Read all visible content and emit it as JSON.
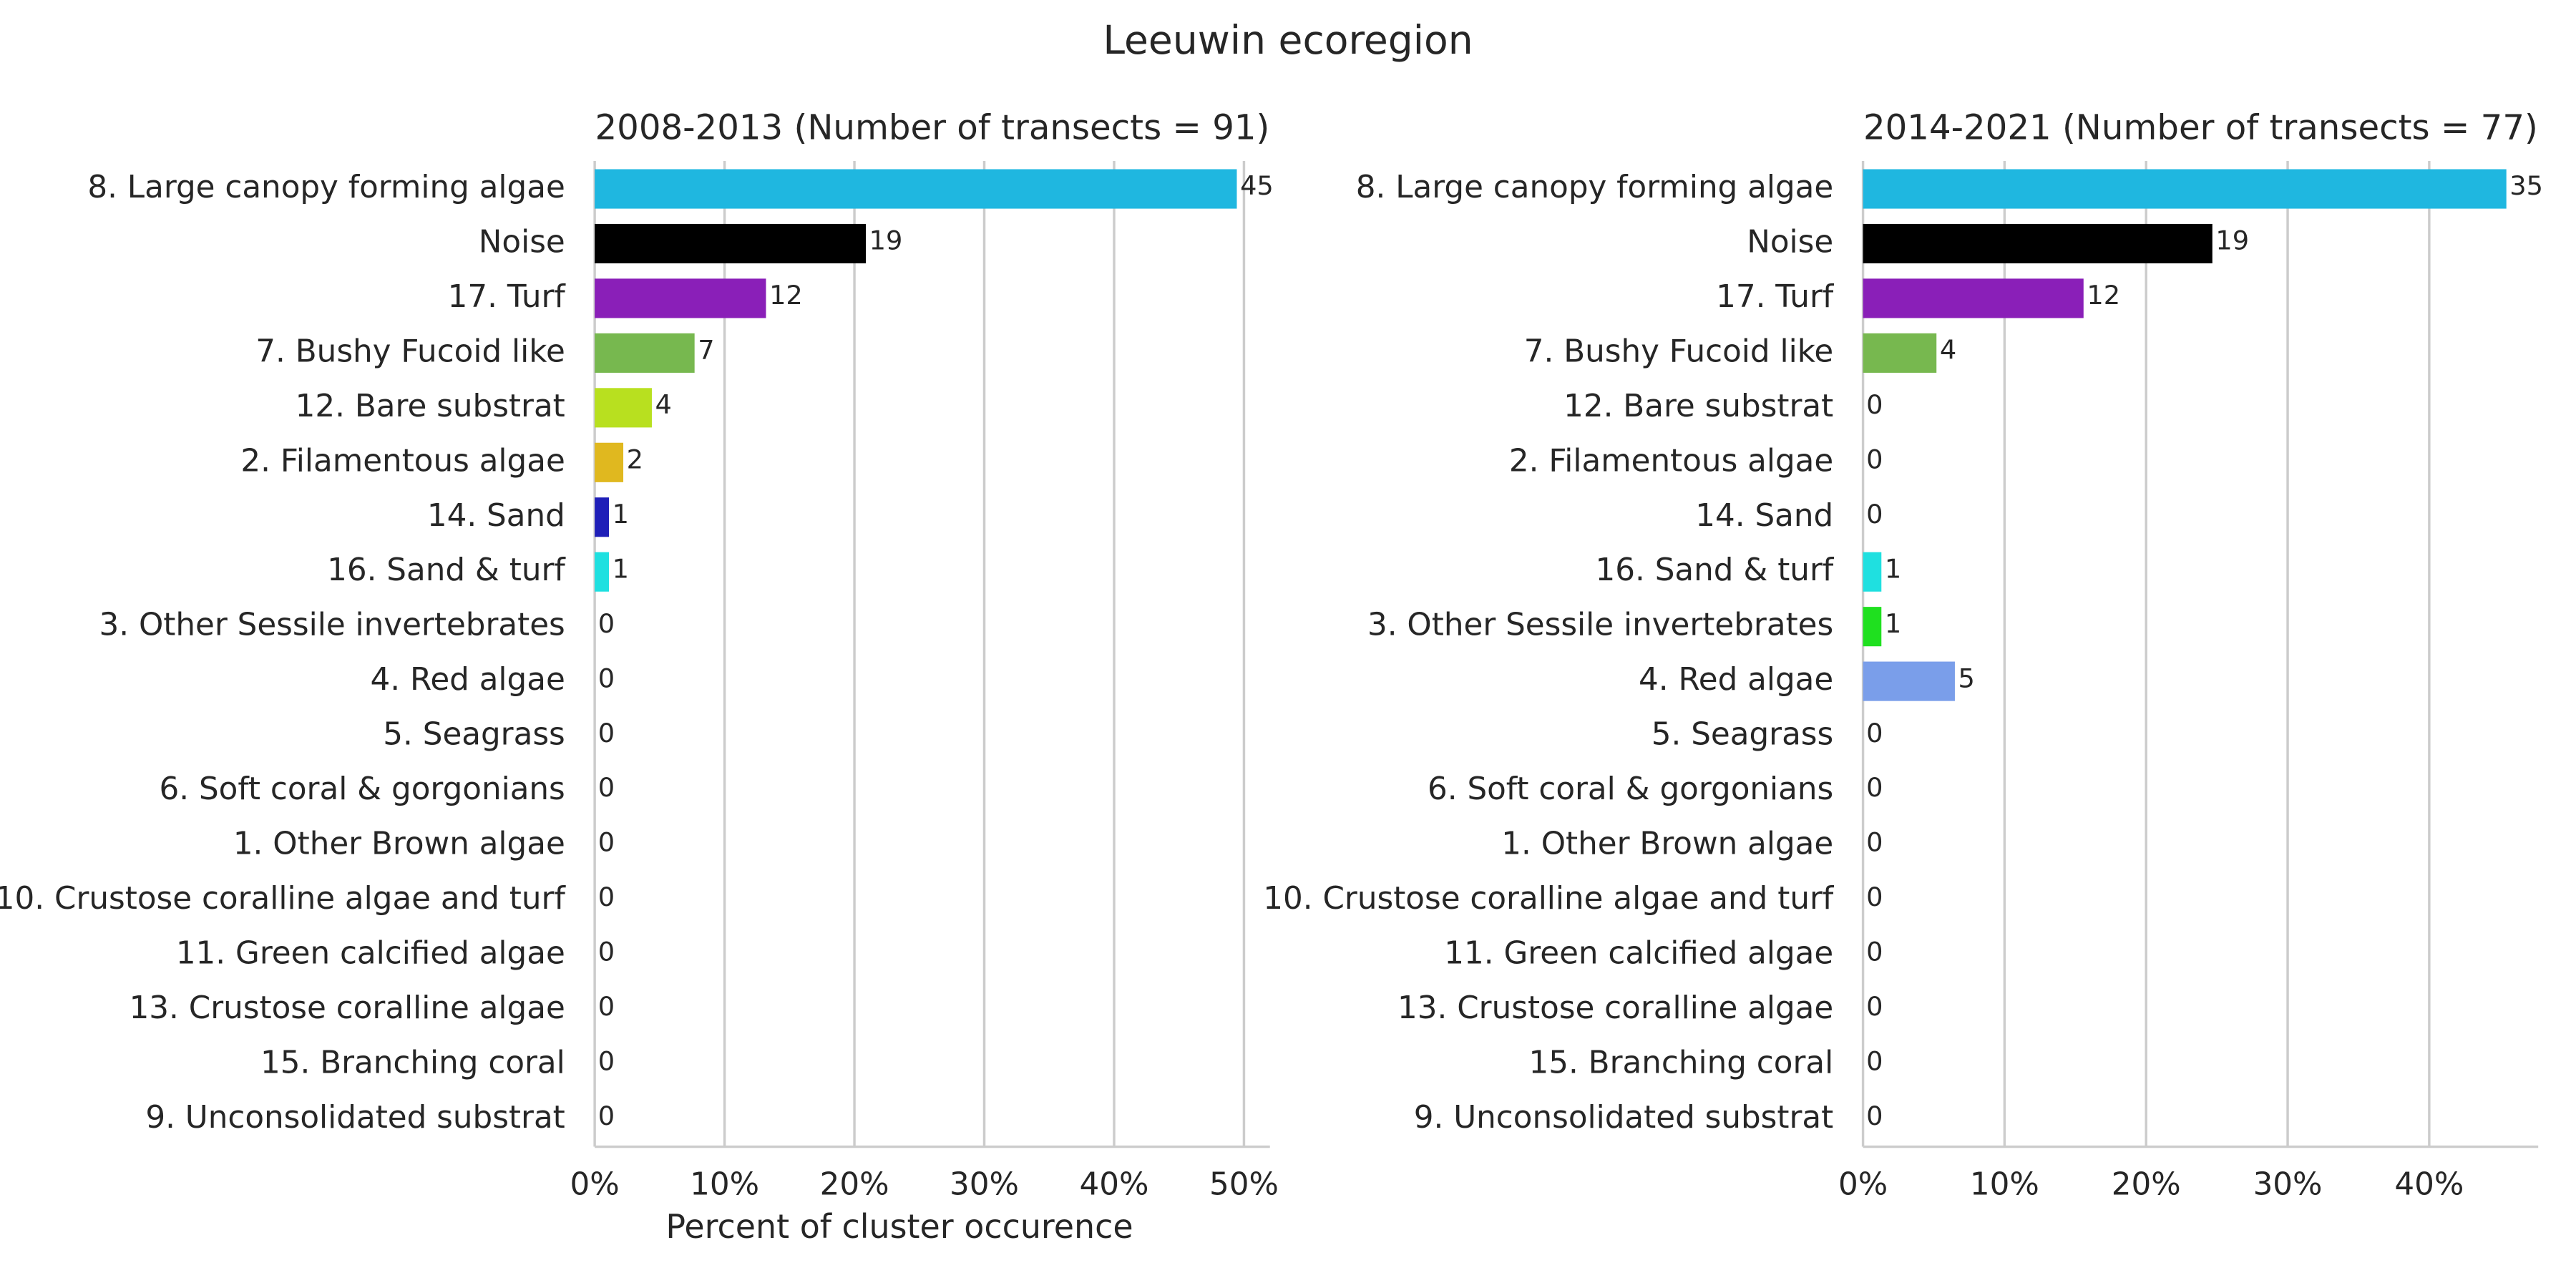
{
  "title": "Leeuwin ecoregion",
  "chart_data": [
    {
      "type": "barh",
      "title": "2008-2013 (Number of transects = 91)",
      "xlabel": "Percent of cluster occurence",
      "categories": [
        "8. Large canopy forming algae",
        "Noise",
        "17. Turf",
        "7. Bushy Fucoid like",
        "12. Bare substrat",
        "2. Filamentous algae",
        "14. Sand",
        "16. Sand & turf",
        "3. Other Sessile invertebrates",
        "4. Red algae",
        "5. Seagrass",
        "6. Soft coral & gorgonians",
        "1. Other Brown algae",
        "10. Crustose coralline algae and turf",
        "11. Green calcified algae",
        "13. Crustose coralline algae",
        "15. Branching coral",
        "9. Unconsolidated substrat"
      ],
      "values": [
        49.45,
        20.88,
        13.19,
        7.69,
        4.4,
        2.2,
        1.1,
        1.1,
        0,
        0,
        0,
        0,
        0,
        0,
        0,
        0,
        0,
        0
      ],
      "counts": [
        45,
        19,
        12,
        7,
        4,
        2,
        1,
        1,
        0,
        0,
        0,
        0,
        0,
        0,
        0,
        0,
        0,
        0
      ],
      "colors": [
        "#1fb7e0",
        "#000000",
        "#8a1fb8",
        "#77b84f",
        "#b8e01f",
        "#e0b81f",
        "#1f1fb8",
        "#1fe0e0",
        "#1fe01f",
        "#7a9eea",
        "#888888",
        "#888888",
        "#888888",
        "#888888",
        "#888888",
        "#888888",
        "#888888",
        "#888888"
      ],
      "xlim": [
        0,
        52
      ],
      "xticks": [
        {
          "value": 0,
          "label": "0%"
        },
        {
          "value": 10,
          "label": "10%"
        },
        {
          "value": 20,
          "label": "20%"
        },
        {
          "value": 30,
          "label": "30%"
        },
        {
          "value": 40,
          "label": "40%"
        },
        {
          "value": 50,
          "label": "50%"
        }
      ],
      "grid": true
    },
    {
      "type": "barh",
      "title": "2014-2021 (Number of transects = 77)",
      "categories": [
        "8. Large canopy forming algae",
        "Noise",
        "17. Turf",
        "7. Bushy Fucoid like",
        "12. Bare substrat",
        "2. Filamentous algae",
        "14. Sand",
        "16. Sand & turf",
        "3. Other Sessile invertebrates",
        "4. Red algae",
        "5. Seagrass",
        "6. Soft coral & gorgonians",
        "1. Other Brown algae",
        "10. Crustose coralline algae and turf",
        "11. Green calcified algae",
        "13. Crustose coralline algae",
        "15. Branching coral",
        "9. Unconsolidated substrat"
      ],
      "values": [
        45.45,
        24.68,
        15.58,
        5.19,
        0,
        0,
        0,
        1.3,
        1.3,
        6.49,
        0,
        0,
        0,
        0,
        0,
        0,
        0,
        0
      ],
      "counts": [
        35,
        19,
        12,
        4,
        0,
        0,
        0,
        1,
        1,
        5,
        0,
        0,
        0,
        0,
        0,
        0,
        0,
        0
      ],
      "colors": [
        "#1fb7e0",
        "#000000",
        "#8a1fb8",
        "#77b84f",
        "#b8e01f",
        "#e0b81f",
        "#1f1fb8",
        "#1fe0e0",
        "#1fe01f",
        "#7a9eea",
        "#888888",
        "#888888",
        "#888888",
        "#888888",
        "#888888",
        "#888888",
        "#888888",
        "#888888"
      ],
      "xlim": [
        0,
        47.7
      ],
      "xticks": [
        {
          "value": 0,
          "label": "0%"
        },
        {
          "value": 10,
          "label": "10%"
        },
        {
          "value": 20,
          "label": "20%"
        },
        {
          "value": 30,
          "label": "30%"
        },
        {
          "value": 40,
          "label": "40%"
        }
      ],
      "grid": true
    }
  ]
}
